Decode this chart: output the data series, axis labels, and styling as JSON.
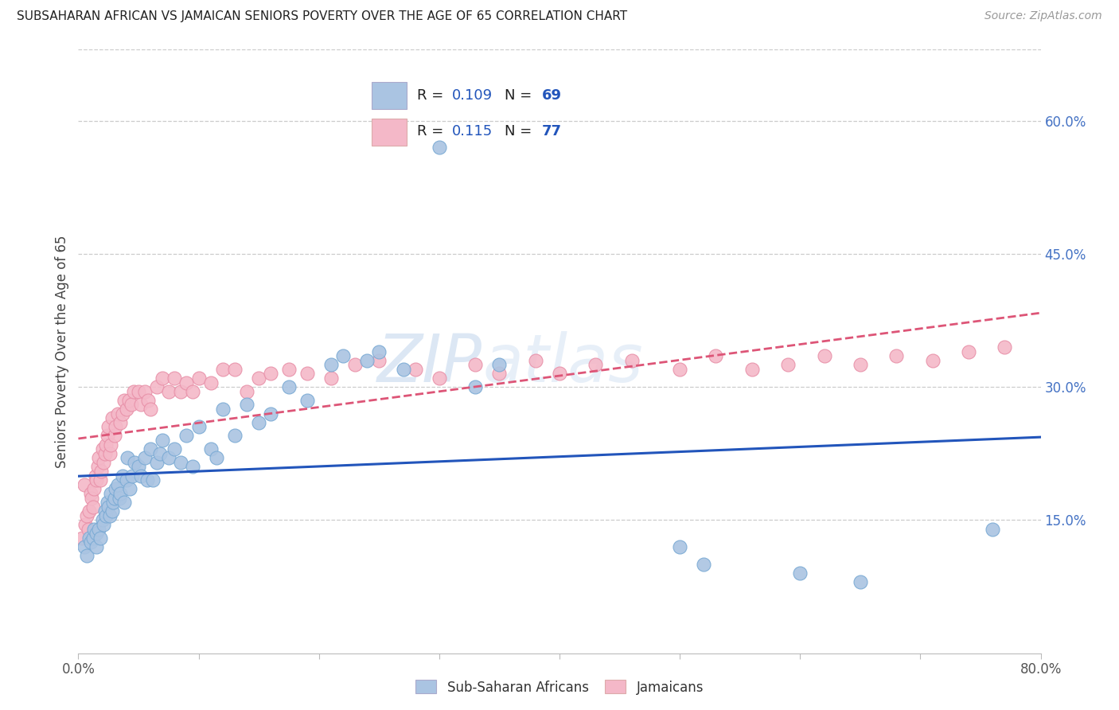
{
  "title": "SUBSAHARAN AFRICAN VS JAMAICAN SENIORS POVERTY OVER THE AGE OF 65 CORRELATION CHART",
  "source": "Source: ZipAtlas.com",
  "ylabel": "Seniors Poverty Over the Age of 65",
  "xlim": [
    0,
    0.8
  ],
  "ylim": [
    0,
    0.68
  ],
  "xtick_positions": [
    0.0,
    0.8
  ],
  "xtick_labels": [
    "0.0%",
    "80.0%"
  ],
  "yticks_right": [
    0.15,
    0.3,
    0.45,
    0.6
  ],
  "ytick_labels_right": [
    "15.0%",
    "30.0%",
    "45.0%",
    "60.0%"
  ],
  "series1_color": "#aac4e2",
  "series2_color": "#f4b8c8",
  "series1_edge": "#7aaad4",
  "series2_edge": "#e890a8",
  "trendline1_color": "#2255bb",
  "trendline2_color": "#dd5577",
  "watermark": "ZIPatlas",
  "legend_labels_bottom": [
    "Sub-Saharan Africans",
    "Jamaicans"
  ],
  "R1": "0.109",
  "N1": "69",
  "R2": "0.115",
  "N2": "77",
  "blue_scatter_x": [
    0.005,
    0.007,
    0.009,
    0.01,
    0.012,
    0.013,
    0.015,
    0.015,
    0.017,
    0.018,
    0.02,
    0.021,
    0.022,
    0.023,
    0.024,
    0.025,
    0.026,
    0.027,
    0.028,
    0.029,
    0.03,
    0.031,
    0.033,
    0.034,
    0.035,
    0.037,
    0.038,
    0.04,
    0.041,
    0.043,
    0.045,
    0.047,
    0.05,
    0.052,
    0.055,
    0.057,
    0.06,
    0.062,
    0.065,
    0.068,
    0.07,
    0.075,
    0.08,
    0.085,
    0.09,
    0.095,
    0.1,
    0.11,
    0.115,
    0.12,
    0.13,
    0.14,
    0.15,
    0.16,
    0.175,
    0.19,
    0.21,
    0.22,
    0.24,
    0.25,
    0.27,
    0.3,
    0.33,
    0.35,
    0.5,
    0.52,
    0.6,
    0.65,
    0.76
  ],
  "blue_scatter_y": [
    0.12,
    0.11,
    0.13,
    0.125,
    0.13,
    0.14,
    0.12,
    0.135,
    0.14,
    0.13,
    0.15,
    0.145,
    0.16,
    0.155,
    0.17,
    0.165,
    0.155,
    0.18,
    0.16,
    0.17,
    0.175,
    0.185,
    0.19,
    0.175,
    0.18,
    0.2,
    0.17,
    0.195,
    0.22,
    0.185,
    0.2,
    0.215,
    0.21,
    0.2,
    0.22,
    0.195,
    0.23,
    0.195,
    0.215,
    0.225,
    0.24,
    0.22,
    0.23,
    0.215,
    0.245,
    0.21,
    0.255,
    0.23,
    0.22,
    0.275,
    0.245,
    0.28,
    0.26,
    0.27,
    0.3,
    0.285,
    0.325,
    0.335,
    0.33,
    0.34,
    0.32,
    0.57,
    0.3,
    0.325,
    0.12,
    0.1,
    0.09,
    0.08,
    0.14
  ],
  "pink_scatter_x": [
    0.003,
    0.005,
    0.006,
    0.007,
    0.008,
    0.009,
    0.01,
    0.011,
    0.012,
    0.013,
    0.014,
    0.015,
    0.016,
    0.017,
    0.018,
    0.019,
    0.02,
    0.021,
    0.022,
    0.023,
    0.024,
    0.025,
    0.026,
    0.027,
    0.028,
    0.03,
    0.031,
    0.033,
    0.035,
    0.037,
    0.038,
    0.04,
    0.042,
    0.044,
    0.046,
    0.05,
    0.052,
    0.055,
    0.058,
    0.06,
    0.065,
    0.07,
    0.075,
    0.08,
    0.085,
    0.09,
    0.095,
    0.1,
    0.11,
    0.12,
    0.13,
    0.14,
    0.15,
    0.16,
    0.175,
    0.19,
    0.21,
    0.23,
    0.25,
    0.28,
    0.3,
    0.33,
    0.35,
    0.38,
    0.4,
    0.43,
    0.46,
    0.5,
    0.53,
    0.56,
    0.59,
    0.62,
    0.65,
    0.68,
    0.71,
    0.74,
    0.77
  ],
  "pink_scatter_y": [
    0.13,
    0.19,
    0.145,
    0.155,
    0.14,
    0.16,
    0.18,
    0.175,
    0.165,
    0.185,
    0.2,
    0.195,
    0.21,
    0.22,
    0.195,
    0.205,
    0.23,
    0.215,
    0.225,
    0.235,
    0.245,
    0.255,
    0.225,
    0.235,
    0.265,
    0.245,
    0.255,
    0.27,
    0.26,
    0.27,
    0.285,
    0.275,
    0.285,
    0.28,
    0.295,
    0.295,
    0.28,
    0.295,
    0.285,
    0.275,
    0.3,
    0.31,
    0.295,
    0.31,
    0.295,
    0.305,
    0.295,
    0.31,
    0.305,
    0.32,
    0.32,
    0.295,
    0.31,
    0.315,
    0.32,
    0.315,
    0.31,
    0.325,
    0.33,
    0.32,
    0.31,
    0.325,
    0.315,
    0.33,
    0.315,
    0.325,
    0.33,
    0.32,
    0.335,
    0.32,
    0.325,
    0.335,
    0.325,
    0.335,
    0.33,
    0.34,
    0.345
  ]
}
